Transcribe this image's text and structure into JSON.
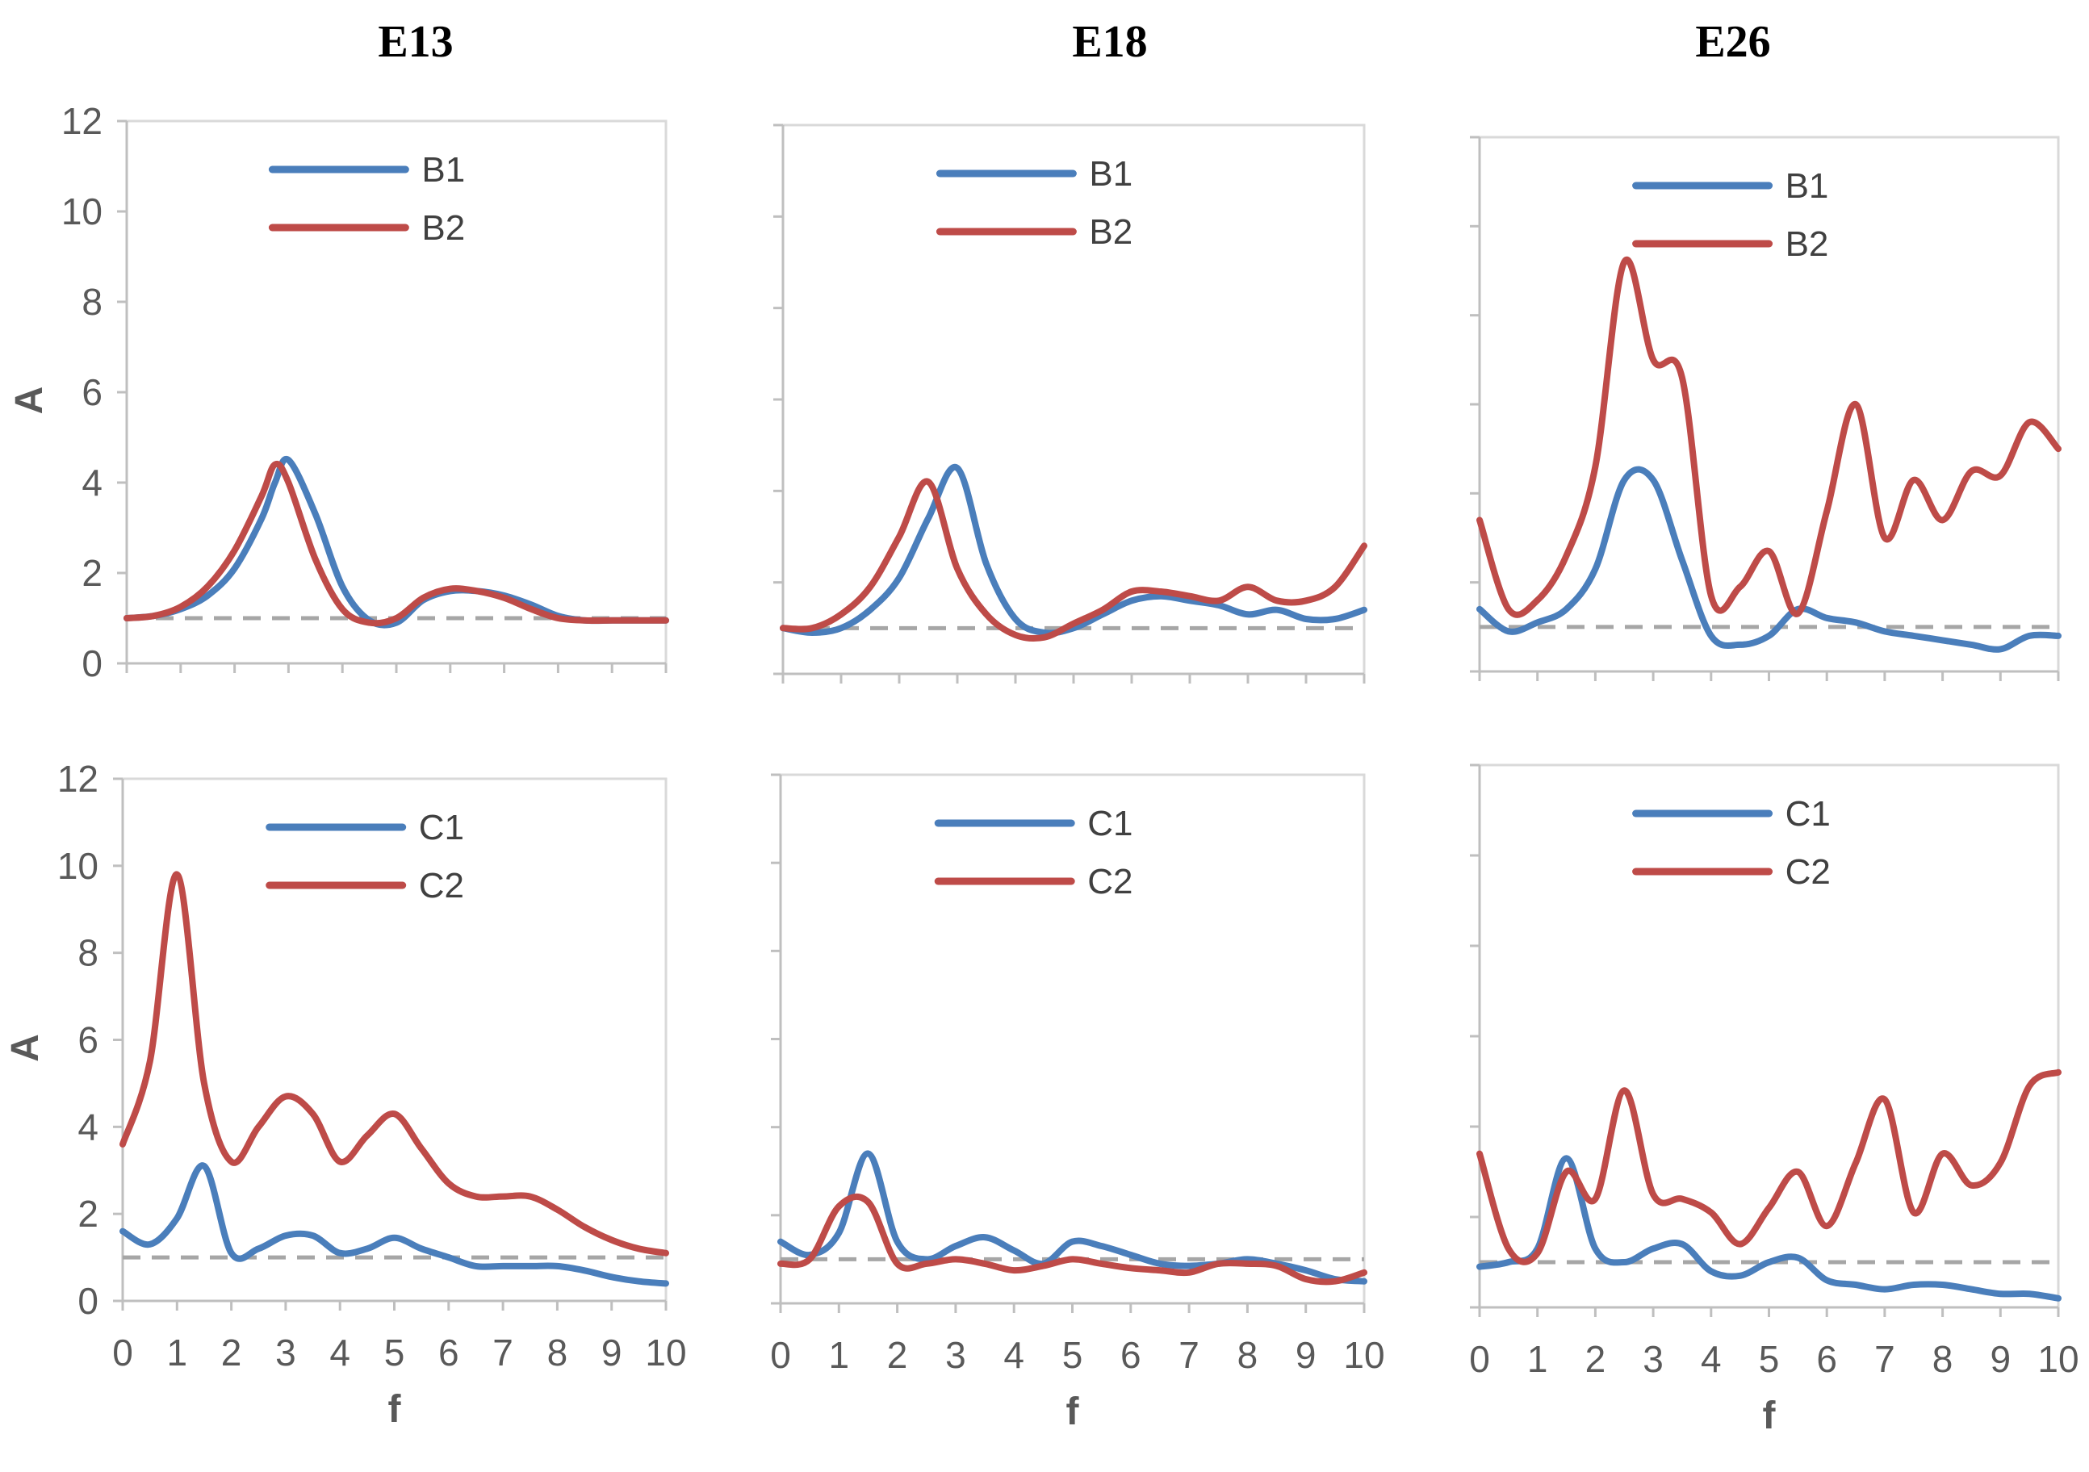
{
  "column_titles": [
    "E13",
    "E18",
    "E26"
  ],
  "colors": {
    "blue": "#4a7ebb",
    "red": "#be4b48",
    "reference": "#a6a6a6"
  },
  "chart_data": [
    {
      "type": "line",
      "id": "E13-B",
      "title": "E13",
      "xlabel": "",
      "ylabel": "A",
      "xlim": [
        0,
        10
      ],
      "ylim": [
        0,
        12
      ],
      "yticks": [
        0,
        2,
        4,
        6,
        8,
        10,
        12
      ],
      "xticks": [],
      "show_yticks": true,
      "show_xticks": false,
      "legend_placement": "top-right",
      "reference_line": 1.0,
      "x": [
        0,
        0.5,
        1,
        1.5,
        2,
        2.5,
        2.75,
        3,
        3.5,
        4,
        4.5,
        5,
        5.5,
        6,
        6.5,
        7,
        7.5,
        8,
        8.5,
        9,
        9.5,
        10
      ],
      "series": [
        {
          "name": "B1",
          "color": "#4a7ebb",
          "values": [
            1.0,
            1.05,
            1.2,
            1.5,
            2.1,
            3.2,
            4.0,
            4.5,
            3.3,
            1.7,
            0.95,
            0.9,
            1.4,
            1.6,
            1.6,
            1.5,
            1.3,
            1.05,
            0.95,
            0.95,
            0.95,
            0.95
          ]
        },
        {
          "name": "B2",
          "color": "#be4b48",
          "values": [
            1.0,
            1.05,
            1.25,
            1.7,
            2.5,
            3.7,
            4.4,
            4.0,
            2.3,
            1.2,
            0.9,
            1.0,
            1.45,
            1.65,
            1.6,
            1.45,
            1.2,
            1.0,
            0.95,
            0.95,
            0.95,
            0.95
          ]
        }
      ]
    },
    {
      "type": "line",
      "id": "E18-B",
      "title": "E18",
      "xlabel": "",
      "ylabel": "",
      "xlim": [
        0,
        10
      ],
      "ylim": [
        0,
        12
      ],
      "yticks": [],
      "xticks": [],
      "show_yticks": false,
      "show_xticks": false,
      "legend_placement": "top-right",
      "reference_line": 1.0,
      "x": [
        0,
        0.5,
        1,
        1.5,
        2,
        2.5,
        3,
        3.5,
        4,
        4.5,
        5,
        5.5,
        6,
        6.5,
        7,
        7.5,
        8,
        8.5,
        9,
        9.5,
        10
      ],
      "series": [
        {
          "name": "B1",
          "color": "#4a7ebb",
          "values": [
            1.0,
            0.9,
            1.0,
            1.4,
            2.1,
            3.4,
            4.5,
            2.4,
            1.2,
            0.9,
            1.0,
            1.3,
            1.6,
            1.7,
            1.6,
            1.5,
            1.3,
            1.4,
            1.2,
            1.2,
            1.4
          ]
        },
        {
          "name": "B2",
          "color": "#be4b48",
          "values": [
            1.0,
            1.0,
            1.3,
            1.9,
            3.0,
            4.2,
            2.3,
            1.3,
            0.85,
            0.8,
            1.1,
            1.4,
            1.8,
            1.8,
            1.7,
            1.6,
            1.9,
            1.6,
            1.6,
            1.9,
            2.8
          ]
        }
      ]
    },
    {
      "type": "line",
      "id": "E26-B",
      "title": "E26",
      "xlabel": "",
      "ylabel": "",
      "xlim": [
        0,
        10
      ],
      "ylim": [
        0,
        12
      ],
      "yticks": [],
      "xticks": [],
      "show_yticks": false,
      "show_xticks": false,
      "legend_placement": "top-right",
      "reference_line": 1.0,
      "x": [
        0,
        0.5,
        1,
        1.5,
        2,
        2.5,
        3,
        3.5,
        4,
        4.5,
        5,
        5.5,
        6,
        6.5,
        7,
        7.5,
        8,
        8.5,
        9,
        9.5,
        10
      ],
      "series": [
        {
          "name": "B1",
          "color": "#4a7ebb",
          "values": [
            1.4,
            0.9,
            1.1,
            1.4,
            2.3,
            4.3,
            4.3,
            2.5,
            0.8,
            0.6,
            0.8,
            1.4,
            1.2,
            1.1,
            0.9,
            0.8,
            0.7,
            0.6,
            0.5,
            0.8,
            0.8
          ]
        },
        {
          "name": "B2",
          "color": "#be4b48",
          "values": [
            3.4,
            1.4,
            1.6,
            2.6,
            4.6,
            9.2,
            7.0,
            6.6,
            1.7,
            1.9,
            2.7,
            1.3,
            3.6,
            6.0,
            3.0,
            4.3,
            3.4,
            4.5,
            4.4,
            5.6,
            5.0
          ]
        }
      ]
    },
    {
      "type": "line",
      "id": "E13-C",
      "title": "",
      "xlabel": "f",
      "ylabel": "A",
      "xlim": [
        0,
        10
      ],
      "ylim": [
        0,
        12
      ],
      "yticks": [
        0,
        2,
        4,
        6,
        8,
        10,
        12
      ],
      "xticks": [
        0,
        1,
        2,
        3,
        4,
        5,
        6,
        7,
        8,
        9,
        10
      ],
      "show_yticks": true,
      "show_xticks": true,
      "legend_placement": "top-right",
      "reference_line": 1.0,
      "x": [
        0,
        0.5,
        1,
        1.5,
        2,
        2.5,
        3,
        3.5,
        4,
        4.5,
        5,
        5.5,
        6,
        6.5,
        7,
        7.5,
        8,
        8.5,
        9,
        9.5,
        10
      ],
      "series": [
        {
          "name": "C1",
          "color": "#4a7ebb",
          "values": [
            1.6,
            1.3,
            1.9,
            3.1,
            1.1,
            1.2,
            1.5,
            1.5,
            1.1,
            1.2,
            1.45,
            1.2,
            1.0,
            0.8,
            0.8,
            0.8,
            0.8,
            0.7,
            0.55,
            0.45,
            0.4
          ]
        },
        {
          "name": "C2",
          "color": "#be4b48",
          "values": [
            3.6,
            5.5,
            9.8,
            5.0,
            3.2,
            4.0,
            4.7,
            4.3,
            3.2,
            3.8,
            4.3,
            3.5,
            2.7,
            2.4,
            2.4,
            2.4,
            2.1,
            1.7,
            1.4,
            1.2,
            1.1
          ]
        }
      ]
    },
    {
      "type": "line",
      "id": "E18-C",
      "title": "",
      "xlabel": "f",
      "ylabel": "",
      "xlim": [
        0,
        10
      ],
      "ylim": [
        0,
        12
      ],
      "yticks": [],
      "xticks": [
        0,
        1,
        2,
        3,
        4,
        5,
        6,
        7,
        8,
        9,
        10
      ],
      "show_yticks": false,
      "show_xticks": true,
      "legend_placement": "top-right",
      "reference_line": 1.0,
      "x": [
        0,
        0.5,
        1,
        1.5,
        2,
        2.5,
        3,
        3.5,
        4,
        4.5,
        5,
        5.5,
        6,
        6.5,
        7,
        7.5,
        8,
        8.5,
        9,
        9.5,
        10
      ],
      "series": [
        {
          "name": "C1",
          "color": "#4a7ebb",
          "values": [
            1.4,
            1.1,
            1.6,
            3.4,
            1.4,
            1.0,
            1.3,
            1.5,
            1.2,
            0.9,
            1.4,
            1.3,
            1.1,
            0.9,
            0.85,
            0.9,
            1.0,
            0.9,
            0.75,
            0.55,
            0.5
          ]
        },
        {
          "name": "C2",
          "color": "#be4b48",
          "values": [
            0.9,
            1.0,
            2.2,
            2.3,
            0.9,
            0.9,
            1.0,
            0.9,
            0.75,
            0.85,
            1.0,
            0.9,
            0.8,
            0.75,
            0.7,
            0.9,
            0.9,
            0.85,
            0.55,
            0.5,
            0.7
          ]
        }
      ]
    },
    {
      "type": "line",
      "id": "E26-C",
      "title": "",
      "xlabel": "f",
      "ylabel": "",
      "xlim": [
        0,
        10
      ],
      "ylim": [
        0,
        12
      ],
      "yticks": [],
      "xticks": [
        0,
        1,
        2,
        3,
        4,
        5,
        6,
        7,
        8,
        9,
        10
      ],
      "show_yticks": false,
      "show_xticks": true,
      "legend_placement": "top-right",
      "reference_line": 1.0,
      "x": [
        0,
        0.5,
        1,
        1.5,
        2,
        2.5,
        3,
        3.5,
        4,
        4.5,
        5,
        5.5,
        6,
        6.5,
        7,
        7.5,
        8,
        8.5,
        9,
        9.5,
        10
      ],
      "series": [
        {
          "name": "C1",
          "color": "#4a7ebb",
          "values": [
            0.9,
            1.0,
            1.3,
            3.3,
            1.3,
            1.0,
            1.3,
            1.4,
            0.8,
            0.7,
            1.0,
            1.1,
            0.6,
            0.5,
            0.4,
            0.5,
            0.5,
            0.4,
            0.3,
            0.3,
            0.2
          ]
        },
        {
          "name": "C2",
          "color": "#be4b48",
          "values": [
            3.4,
            1.3,
            1.2,
            3.0,
            2.4,
            4.8,
            2.5,
            2.4,
            2.1,
            1.4,
            2.2,
            3.0,
            1.8,
            3.2,
            4.6,
            2.1,
            3.4,
            2.7,
            3.2,
            4.9,
            5.2
          ]
        }
      ]
    }
  ]
}
